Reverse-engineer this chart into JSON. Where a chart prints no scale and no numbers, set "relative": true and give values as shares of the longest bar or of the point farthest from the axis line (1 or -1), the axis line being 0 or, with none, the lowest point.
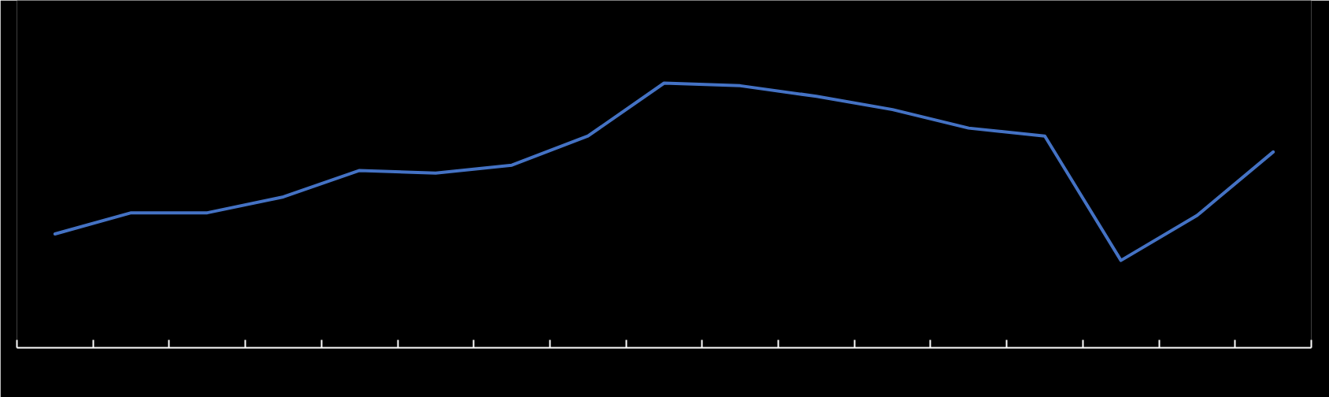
{
  "chart_data": {
    "type": "line",
    "relative": true,
    "categories": [
      null,
      null,
      null,
      null,
      null,
      null,
      null,
      null,
      null,
      null,
      null,
      null,
      null,
      null,
      null,
      null,
      null
    ],
    "series": [
      {
        "color": "#4472c4",
        "values": [
          0.43,
          0.51,
          0.51,
          0.57,
          0.67,
          0.66,
          0.69,
          0.8,
          1,
          0.99,
          0.95,
          0.9,
          0.83,
          0.8,
          0.33,
          0.5,
          0.74
        ]
      }
    ],
    "marker": "none",
    "line_style": "solid"
  }
}
